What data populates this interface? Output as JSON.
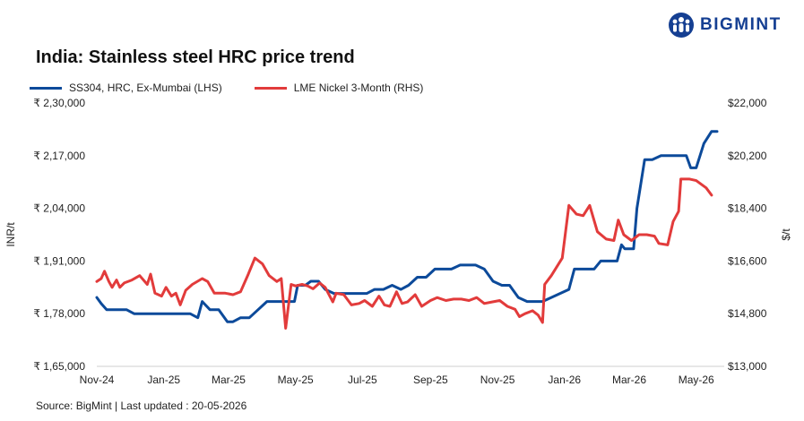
{
  "brand": {
    "name": "BIGMINT",
    "color": "#153f92",
    "logo_icon": "people-group-icon"
  },
  "source_text": "Source: BigMint | Last updated : 20-05-2026",
  "chart_data": {
    "type": "line",
    "title": "India: Stainless steel HRC price trend",
    "ylabel_left": "INR/t",
    "ylabel_right": "$/t",
    "grid": false,
    "legend_placement": "top-left",
    "x_ticks": [
      "Nov-24",
      "Jan-25",
      "Mar-25",
      "May-25",
      "Jul-25",
      "Sep-25",
      "Nov-25",
      "Jan-26",
      "Mar-26",
      "May-26"
    ],
    "y_left": {
      "ylim": [
        165000,
        230000
      ],
      "ticks": [
        165000,
        178000,
        191000,
        204000,
        217000,
        230000
      ],
      "tick_labels": [
        "₹ 1,65,000",
        "₹ 1,78,000",
        "₹ 1,91,000",
        "₹ 2,04,000",
        "₹ 2,17,000",
        "₹ 2,30,000"
      ]
    },
    "y_right": {
      "ylim": [
        13000,
        22000
      ],
      "ticks": [
        13000,
        14800,
        16600,
        18400,
        20200,
        22000
      ],
      "tick_labels": [
        "$13,000",
        "$14,800",
        "$16,600",
        "$18,400",
        "$20,200",
        "$22,000"
      ]
    },
    "series": [
      {
        "name": "SS304, HRC, Ex-Mumbai (LHS)",
        "axis": "left",
        "color": "#0c4a9a",
        "points": [
          [
            "2024-11-01",
            182000
          ],
          [
            "2024-11-05",
            180500
          ],
          [
            "2024-11-10",
            179000
          ],
          [
            "2024-11-20",
            179000
          ],
          [
            "2024-11-28",
            179000
          ],
          [
            "2024-12-05",
            178000
          ],
          [
            "2024-12-20",
            178000
          ],
          [
            "2025-01-05",
            178000
          ],
          [
            "2025-01-15",
            178000
          ],
          [
            "2025-01-25",
            178000
          ],
          [
            "2025-02-01",
            177000
          ],
          [
            "2025-02-05",
            181000
          ],
          [
            "2025-02-12",
            179000
          ],
          [
            "2025-02-20",
            179000
          ],
          [
            "2025-02-28",
            176000
          ],
          [
            "2025-03-05",
            176000
          ],
          [
            "2025-03-12",
            177000
          ],
          [
            "2025-03-20",
            177000
          ],
          [
            "2025-03-28",
            179000
          ],
          [
            "2025-04-05",
            181000
          ],
          [
            "2025-04-15",
            181000
          ],
          [
            "2025-04-22",
            181000
          ],
          [
            "2025-04-30",
            181000
          ],
          [
            "2025-05-03",
            185000
          ],
          [
            "2025-05-10",
            185000
          ],
          [
            "2025-05-15",
            186000
          ],
          [
            "2025-05-22",
            186000
          ],
          [
            "2025-05-28",
            184000
          ],
          [
            "2025-06-05",
            183000
          ],
          [
            "2025-06-15",
            183000
          ],
          [
            "2025-06-25",
            183000
          ],
          [
            "2025-07-05",
            183000
          ],
          [
            "2025-07-12",
            184000
          ],
          [
            "2025-07-20",
            184000
          ],
          [
            "2025-07-28",
            185000
          ],
          [
            "2025-08-05",
            184000
          ],
          [
            "2025-08-12",
            185000
          ],
          [
            "2025-08-20",
            187000
          ],
          [
            "2025-08-28",
            187000
          ],
          [
            "2025-09-05",
            189000
          ],
          [
            "2025-09-12",
            189000
          ],
          [
            "2025-09-20",
            189000
          ],
          [
            "2025-09-28",
            190000
          ],
          [
            "2025-10-05",
            190000
          ],
          [
            "2025-10-12",
            190000
          ],
          [
            "2025-10-20",
            189000
          ],
          [
            "2025-10-28",
            186000
          ],
          [
            "2025-11-05",
            185000
          ],
          [
            "2025-11-12",
            185000
          ],
          [
            "2025-11-20",
            182000
          ],
          [
            "2025-11-28",
            181000
          ],
          [
            "2025-12-05",
            181000
          ],
          [
            "2025-12-12",
            181000
          ],
          [
            "2025-12-20",
            182000
          ],
          [
            "2025-12-28",
            183000
          ],
          [
            "2026-01-05",
            184000
          ],
          [
            "2026-01-10",
            189000
          ],
          [
            "2026-01-20",
            189000
          ],
          [
            "2026-01-28",
            189000
          ],
          [
            "2026-02-03",
            191000
          ],
          [
            "2026-02-10",
            191000
          ],
          [
            "2026-02-18",
            191000
          ],
          [
            "2026-02-22",
            195000
          ],
          [
            "2026-02-25",
            194000
          ],
          [
            "2026-03-05",
            194000
          ],
          [
            "2026-03-08",
            204000
          ],
          [
            "2026-03-15",
            216000
          ],
          [
            "2026-03-22",
            216000
          ],
          [
            "2026-03-30",
            217000
          ],
          [
            "2026-04-05",
            217000
          ],
          [
            "2026-04-15",
            217000
          ],
          [
            "2026-04-22",
            217000
          ],
          [
            "2026-04-26",
            214000
          ],
          [
            "2026-05-01",
            214000
          ],
          [
            "2026-05-08",
            220000
          ],
          [
            "2026-05-15",
            223000
          ],
          [
            "2026-05-20",
            223000
          ]
        ]
      },
      {
        "name": "LME Nickel 3-Month (RHS)",
        "axis": "right",
        "color": "#e23b3b",
        "points": [
          [
            "2024-11-01",
            15900
          ],
          [
            "2024-11-05",
            16000
          ],
          [
            "2024-11-08",
            16250
          ],
          [
            "2024-11-12",
            15900
          ],
          [
            "2024-11-15",
            15700
          ],
          [
            "2024-11-19",
            15950
          ],
          [
            "2024-11-22",
            15700
          ],
          [
            "2024-11-26",
            15850
          ],
          [
            "2024-12-03",
            15950
          ],
          [
            "2024-12-10",
            16100
          ],
          [
            "2024-12-17",
            15800
          ],
          [
            "2024-12-20",
            16150
          ],
          [
            "2024-12-24",
            15500
          ],
          [
            "2024-12-30",
            15400
          ],
          [
            "2025-01-03",
            15700
          ],
          [
            "2025-01-08",
            15400
          ],
          [
            "2025-01-12",
            15500
          ],
          [
            "2025-01-16",
            15100
          ],
          [
            "2025-01-21",
            15600
          ],
          [
            "2025-01-27",
            15800
          ],
          [
            "2025-02-05",
            16000
          ],
          [
            "2025-02-10",
            15900
          ],
          [
            "2025-02-16",
            15500
          ],
          [
            "2025-02-26",
            15500
          ],
          [
            "2025-03-05",
            15450
          ],
          [
            "2025-03-12",
            15550
          ],
          [
            "2025-03-19",
            16150
          ],
          [
            "2025-03-25",
            16700
          ],
          [
            "2025-04-01",
            16500
          ],
          [
            "2025-04-07",
            16100
          ],
          [
            "2025-04-14",
            15900
          ],
          [
            "2025-04-18",
            16000
          ],
          [
            "2025-04-22",
            14300
          ],
          [
            "2025-04-27",
            15800
          ],
          [
            "2025-05-01",
            15750
          ],
          [
            "2025-05-07",
            15800
          ],
          [
            "2025-05-12",
            15750
          ],
          [
            "2025-05-17",
            15650
          ],
          [
            "2025-05-23",
            15850
          ],
          [
            "2025-05-28",
            15700
          ],
          [
            "2025-06-04",
            15200
          ],
          [
            "2025-06-07",
            15500
          ],
          [
            "2025-06-14",
            15450
          ],
          [
            "2025-06-21",
            15100
          ],
          [
            "2025-06-28",
            15150
          ],
          [
            "2025-07-03",
            15250
          ],
          [
            "2025-07-10",
            15050
          ],
          [
            "2025-07-16",
            15400
          ],
          [
            "2025-07-21",
            15100
          ],
          [
            "2025-07-26",
            15050
          ],
          [
            "2025-08-01",
            15550
          ],
          [
            "2025-08-06",
            15150
          ],
          [
            "2025-08-11",
            15200
          ],
          [
            "2025-08-18",
            15450
          ],
          [
            "2025-08-24",
            15050
          ],
          [
            "2025-09-01",
            15250
          ],
          [
            "2025-09-07",
            15350
          ],
          [
            "2025-09-15",
            15250
          ],
          [
            "2025-09-22",
            15300
          ],
          [
            "2025-09-29",
            15300
          ],
          [
            "2025-10-06",
            15250
          ],
          [
            "2025-10-13",
            15350
          ],
          [
            "2025-10-20",
            15150
          ],
          [
            "2025-10-27",
            15200
          ],
          [
            "2025-11-03",
            15250
          ],
          [
            "2025-11-10",
            15050
          ],
          [
            "2025-11-17",
            14950
          ],
          [
            "2025-11-21",
            14700
          ],
          [
            "2025-11-26",
            14800
          ],
          [
            "2025-12-03",
            14900
          ],
          [
            "2025-12-08",
            14750
          ],
          [
            "2025-12-12",
            14500
          ],
          [
            "2025-12-14",
            15800
          ],
          [
            "2025-12-20",
            16100
          ],
          [
            "2025-12-30",
            16700
          ],
          [
            "2026-01-05",
            18500
          ],
          [
            "2026-01-12",
            18200
          ],
          [
            "2026-01-18",
            18150
          ],
          [
            "2026-01-24",
            18500
          ],
          [
            "2026-01-31",
            17600
          ],
          [
            "2026-02-08",
            17350
          ],
          [
            "2026-02-15",
            17300
          ],
          [
            "2026-02-19",
            18000
          ],
          [
            "2026-02-24",
            17500
          ],
          [
            "2026-03-03",
            17300
          ],
          [
            "2026-03-10",
            17500
          ],
          [
            "2026-03-17",
            17500
          ],
          [
            "2026-03-24",
            17450
          ],
          [
            "2026-03-28",
            17200
          ],
          [
            "2026-04-05",
            17150
          ],
          [
            "2026-04-10",
            17950
          ],
          [
            "2026-04-15",
            18300
          ],
          [
            "2026-04-17",
            19400
          ],
          [
            "2026-04-25",
            19400
          ],
          [
            "2026-05-01",
            19350
          ],
          [
            "2026-05-10",
            19100
          ],
          [
            "2026-05-15",
            18850
          ]
        ]
      }
    ]
  }
}
